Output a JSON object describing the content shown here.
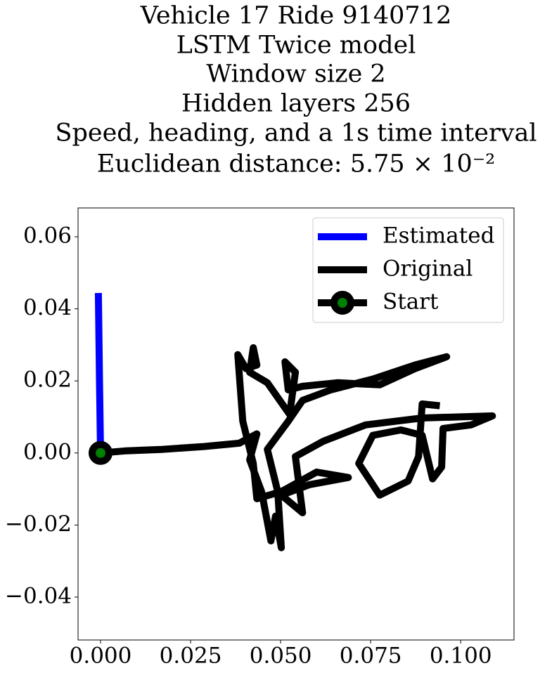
{
  "chart_data": {
    "type": "line",
    "title": [
      "Vehicle 17 Ride 9140712",
      "LSTM Twice model",
      "Window size 2",
      "Hidden layers 256",
      "Speed, heading, and a 1s time interval",
      "Euclidean distance: 5.75 × 10⁻²"
    ],
    "series": [
      {
        "name": "Estimated",
        "color": "#0000ff",
        "x": [
          -0.0006,
          -0.0003,
          0
        ],
        "values": [
          0.0444,
          0.02,
          0
        ]
      },
      {
        "name": "Original",
        "color": "#000000",
        "x": [
          0,
          0.0072,
          0.017,
          0.0287,
          0.0385,
          0.0434,
          0.0414,
          0.0447,
          0.0473,
          0.0486,
          0.0502,
          0.0492,
          0.0463,
          0.0521,
          0.0561,
          0.0639,
          0.0756,
          0.0873,
          0.0961,
          0.0873,
          0.0775,
          0.0658,
          0.0561,
          0.0521,
          0.0512,
          0.0541,
          0.0525,
          0.0463,
          0.0414,
          0.0424,
          0.0434,
          0.0404,
          0.0381,
          0.0395,
          0.0424,
          0.0434,
          0.0502,
          0.06,
          0.0688,
          0.058,
          0.0502,
          0.0561,
          0.0541,
          0.0619,
          0.0736,
          0.0893,
          0.1088,
          0.1029,
          0.0951,
          0.0947,
          0.0922,
          0.0893,
          0.0834,
          0.0756,
          0.0717,
          0.0775,
          0.0854,
          0.0883,
          0.0893,
          0.0942
        ],
        "values": [
          0,
          0.0006,
          0.001,
          0.0018,
          0.0027,
          0.0053,
          -0.0019,
          -0.0107,
          -0.0244,
          -0.0175,
          -0.0263,
          -0.0107,
          0.001,
          0.0088,
          0.0146,
          0.0175,
          0.0205,
          0.0244,
          0.0267,
          0.0234,
          0.0189,
          0.0195,
          0.0185,
          0.0175,
          0.0253,
          0.0224,
          0.0107,
          0.0195,
          0.0224,
          0.0292,
          0.0244,
          0.0234,
          0.0273,
          0.0088,
          -0.0029,
          -0.0127,
          -0.0107,
          -0.0053,
          -0.0068,
          -0.0088,
          -0.0117,
          -0.0166,
          -0.001,
          0.0033,
          0.0078,
          0.0097,
          0.0103,
          0.0078,
          0.0068,
          -0.0039,
          -0.0072,
          0.0049,
          0.0064,
          0.0049,
          -0.0029,
          -0.0117,
          -0.0078,
          -0.001,
          0.0136,
          0.0131
        ]
      },
      {
        "name": "Start",
        "color": "#000000",
        "marker_color": "#008000",
        "x": [
          0
        ],
        "values": [
          0
        ]
      }
    ],
    "xlim": [
      -0.00625,
      0.1148
    ],
    "ylim": [
      -0.0519,
      0.068
    ],
    "xticks": [
      {
        "value": 0,
        "label": "0.000"
      },
      0.025,
      {
        "value": 0.05,
        "label": "0.050"
      },
      0.075,
      {
        "value": 0.1,
        "label": "0.100"
      }
    ],
    "yticks": [
      {
        "value": -0.04,
        "label": "−0.04"
      },
      {
        "value": -0.02,
        "label": "−0.02"
      },
      {
        "value": 0,
        "label": "0.00"
      },
      0.02,
      0.04,
      0.06
    ],
    "legend": "upper right",
    "grid": false
  }
}
